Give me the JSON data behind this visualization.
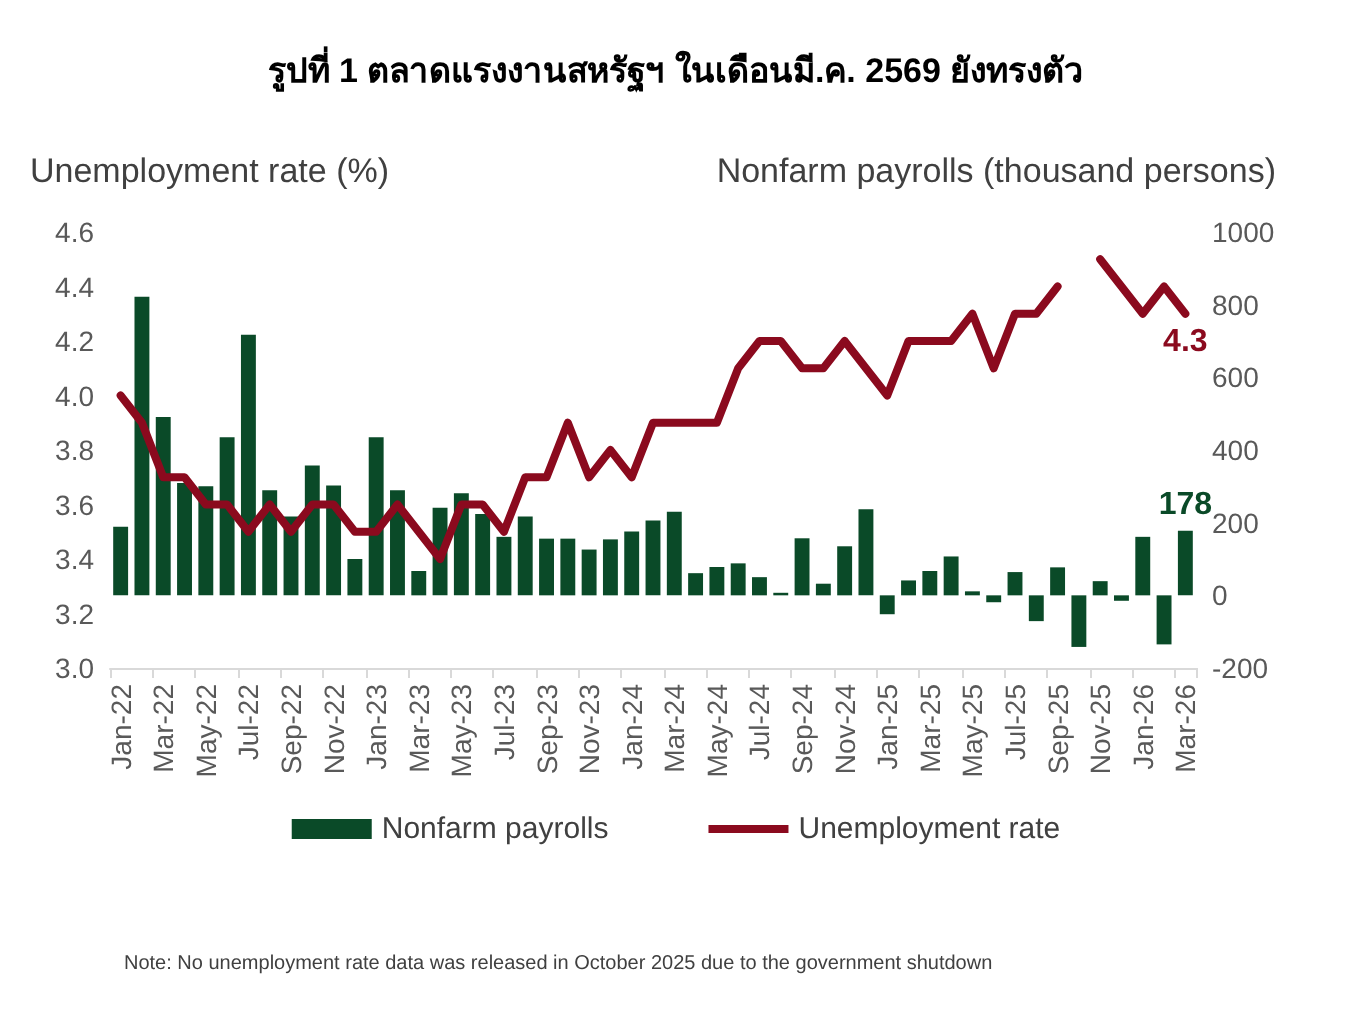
{
  "chart_data": {
    "type": "bar",
    "title": "รูปที่ 1 ตลาดแรงงานสหรัฐฯ ในเดือนมี.ค. 2569 ยังทรงตัว",
    "ylabel": "Unemployment rate (%)",
    "y2label": "Nonfarm payrolls (thousand persons)",
    "annotations": [
      "Note: No unemployment rate data was released in October 2025 due to the government shutdown"
    ],
    "categories": [
      "Jan-22",
      null,
      "Mar-22",
      null,
      "May-22",
      null,
      "Jul-22",
      null,
      "Sep-22",
      null,
      "Nov-22",
      null,
      "Jan-23",
      null,
      "Mar-23",
      null,
      "May-23",
      null,
      "Jul-23",
      null,
      "Sep-23",
      null,
      "Nov-23",
      null,
      "Jan-24",
      null,
      "Mar-24",
      null,
      "May-24",
      null,
      "Jul-24",
      null,
      "Sep-24",
      null,
      "Nov-24",
      null,
      "Jan-25",
      null,
      "Mar-25",
      null,
      "May-25",
      null,
      "Jul-25",
      null,
      "Sep-25",
      null,
      "Nov-25",
      null,
      "Jan-26",
      null,
      "Mar-26"
    ],
    "series": [
      {
        "name": "Nonfarm payrolls",
        "axis": "y2",
        "color": "#0a4a28",
        "values": [
          189,
          822,
          491,
          309,
          300,
          435,
          717,
          289,
          217,
          357,
          302,
          100,
          435,
          289,
          67,
          241,
          281,
          224,
          161,
          217,
          156,
          156,
          126,
          154,
          176,
          206,
          230,
          61,
          78,
          88,
          50,
          7,
          157,
          32,
          135,
          237,
          -52,
          41,
          67,
          107,
          11,
          -19,
          64,
          -71,
          77,
          -142,
          39,
          -15,
          161,
          -135,
          178
        ],
        "value_labels": [
          null,
          null,
          null,
          null,
          null,
          null,
          null,
          null,
          null,
          null,
          null,
          null,
          null,
          null,
          null,
          null,
          null,
          null,
          null,
          null,
          null,
          null,
          null,
          null,
          null,
          null,
          null,
          null,
          null,
          null,
          null,
          null,
          null,
          null,
          null,
          null,
          null,
          null,
          null,
          null,
          null,
          null,
          null,
          null,
          null,
          null,
          null,
          null,
          null,
          null,
          "178"
        ]
      },
      {
        "name": "Unemployment rate",
        "type": "line",
        "axis": "y",
        "color": "#8b0a1e",
        "values": [
          4.0,
          3.9,
          3.7,
          3.7,
          3.6,
          3.6,
          3.5,
          3.6,
          3.5,
          3.6,
          3.6,
          3.5,
          3.5,
          3.6,
          3.5,
          3.4,
          3.6,
          3.6,
          3.5,
          3.7,
          3.7,
          3.9,
          3.7,
          3.8,
          3.7,
          3.9,
          3.9,
          3.9,
          3.9,
          4.1,
          4.2,
          4.2,
          4.1,
          4.1,
          4.2,
          4.1,
          4.0,
          4.2,
          4.2,
          4.2,
          4.3,
          4.1,
          4.3,
          4.3,
          4.4,
          null,
          4.5,
          4.4,
          4.3,
          4.4,
          4.3
        ],
        "value_labels": [
          null,
          null,
          null,
          null,
          null,
          null,
          null,
          null,
          null,
          null,
          null,
          null,
          null,
          null,
          null,
          null,
          null,
          null,
          null,
          null,
          null,
          null,
          null,
          null,
          null,
          null,
          null,
          null,
          null,
          null,
          null,
          null,
          null,
          null,
          null,
          null,
          null,
          null,
          null,
          null,
          null,
          null,
          null,
          null,
          null,
          null,
          null,
          null,
          null,
          null,
          "4.3"
        ]
      }
    ],
    "ylim": [
      3.0,
      4.6
    ],
    "yticks": [
      {
        "value": 3,
        "label": "3.0"
      },
      3.2,
      3.4,
      3.6,
      3.8,
      {
        "value": 4,
        "label": "4.0"
      },
      4.2,
      4.4,
      4.6
    ],
    "y2lim": [
      -200,
      1000
    ],
    "y2ticks": [
      -200,
      0,
      200,
      400,
      600,
      800,
      1000
    ],
    "legend": "bottom",
    "grid": false,
    "marker": "none",
    "line_style": "solid"
  }
}
